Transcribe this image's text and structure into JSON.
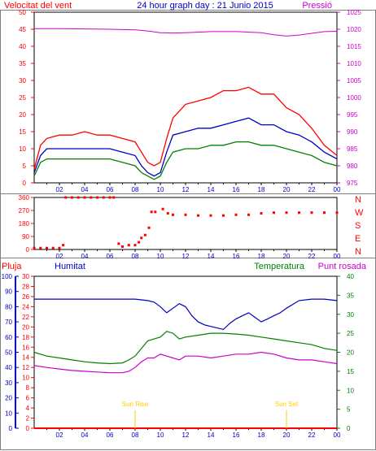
{
  "header": {
    "left_label": "Velocitat del vent",
    "title": "24 hour graph day : 21 Junio 2015",
    "right_label": "Pressió"
  },
  "colors": {
    "red": "#ff0000",
    "blue": "#0000c0",
    "green": "#008000",
    "magenta": "#cc00cc",
    "yellow": "#ffcc00",
    "border": "#808080"
  },
  "time_ticks": [
    "02",
    "04",
    "06",
    "08",
    "10",
    "12",
    "14",
    "16",
    "18",
    "20",
    "22",
    "00"
  ],
  "chart_data": [
    {
      "type": "line",
      "title": "24 hour graph day : 21 Junio 2015",
      "xlabel": "",
      "x_unit": "hour",
      "xlim": [
        0,
        24
      ],
      "ylabel_left": "Velocitat del vent",
      "ylabel_right": "Pressió",
      "ylim_left": [
        0,
        50
      ],
      "ylim_right": [
        975,
        1025
      ],
      "yticks_left": [
        0,
        5,
        10,
        15,
        20,
        25,
        30,
        35,
        40,
        45,
        50
      ],
      "yticks_right": [
        975,
        980,
        985,
        990,
        995,
        1000,
        1005,
        1010,
        1015,
        1020,
        1025
      ],
      "grid": false,
      "series": [
        {
          "name": "Pressió",
          "axis": "right",
          "color": "#cc00cc",
          "x": [
            0,
            2,
            4,
            6,
            8,
            9,
            10,
            11,
            12,
            14,
            16,
            18,
            19,
            20,
            21,
            22,
            23,
            24
          ],
          "y": [
            1020.2,
            1020.2,
            1020.1,
            1020.0,
            1019.8,
            1019.5,
            1019.0,
            1018.9,
            1019.0,
            1019.3,
            1019.3,
            1019.0,
            1018.4,
            1018.0,
            1018.3,
            1018.8,
            1019.3,
            1019.4
          ]
        },
        {
          "axis": "left",
          "color": "#ff0000",
          "x": [
            0,
            0.5,
            1,
            2,
            3,
            4,
            5,
            6,
            7,
            8,
            8.5,
            9,
            9.5,
            10,
            10.5,
            11,
            12,
            13,
            14,
            15,
            16,
            17,
            18,
            19,
            20,
            21,
            22,
            23,
            24
          ],
          "y": [
            4,
            11,
            13,
            14,
            14,
            15,
            14,
            14,
            13,
            12,
            9,
            6,
            5,
            6,
            13,
            19,
            23,
            24,
            25,
            27,
            27,
            28,
            26,
            26,
            22,
            20,
            16,
            11,
            8
          ]
        },
        {
          "axis": "left",
          "color": "#0000c0",
          "x": [
            0,
            0.5,
            1,
            2,
            3,
            4,
            5,
            6,
            7,
            8,
            8.5,
            9,
            9.5,
            10,
            10.5,
            11,
            12,
            13,
            14,
            15,
            16,
            17,
            18,
            19,
            20,
            21,
            22,
            23,
            24
          ],
          "y": [
            3,
            8,
            10,
            10,
            10,
            10,
            10,
            10,
            9,
            8,
            5,
            3,
            2,
            3,
            9,
            14,
            15,
            16,
            16,
            17,
            18,
            19,
            17,
            17,
            15,
            14,
            12,
            9,
            7
          ]
        },
        {
          "axis": "left",
          "color": "#008000",
          "x": [
            0,
            0.5,
            1,
            2,
            3,
            4,
            5,
            6,
            7,
            8,
            8.5,
            9,
            9.5,
            10,
            10.5,
            11,
            12,
            13,
            14,
            15,
            16,
            17,
            18,
            19,
            20,
            21,
            22,
            23,
            24
          ],
          "y": [
            2,
            6,
            7,
            7,
            7,
            7,
            7,
            7,
            6,
            5,
            3,
            2,
            1,
            2,
            6,
            9,
            10,
            10,
            11,
            11,
            12,
            12,
            11,
            11,
            10,
            9,
            8,
            6,
            5
          ]
        }
      ]
    },
    {
      "type": "scatter",
      "xlim": [
        0,
        24
      ],
      "ylim": [
        0,
        360
      ],
      "yticks_left": [
        0,
        90,
        180,
        270,
        360
      ],
      "yticks_right_labels": [
        "N",
        "E",
        "S",
        "W",
        "N"
      ],
      "series": [
        {
          "color": "#ff0000",
          "x": [
            0,
            0.5,
            1,
            1.5,
            2.0,
            2.3,
            2.5,
            3,
            3.5,
            4,
            4.5,
            5,
            5.5,
            6,
            6.3,
            6.7,
            7,
            7.5,
            8,
            8.3,
            8.5,
            8.8,
            9.1,
            9.3,
            9.6,
            10.2,
            10.6,
            11,
            12,
            13,
            14,
            15,
            16,
            17,
            18,
            19,
            20,
            21,
            22,
            23,
            24
          ],
          "y": [
            10,
            10,
            10,
            10,
            10,
            30,
            360,
            360,
            360,
            360,
            360,
            360,
            360,
            360,
            360,
            40,
            20,
            30,
            30,
            50,
            80,
            100,
            150,
            260,
            260,
            280,
            250,
            240,
            240,
            235,
            235,
            235,
            240,
            240,
            250,
            255,
            255,
            255,
            255,
            255,
            255
          ]
        }
      ]
    },
    {
      "type": "line",
      "xlim": [
        0,
        24
      ],
      "left_labels": [
        "Pluja",
        "Humitat"
      ],
      "right_labels": [
        "Temperatura",
        "Punt rosada"
      ],
      "axis_rain": [
        0,
        30
      ],
      "axis_humidity": [
        0,
        100
      ],
      "axis_temperature": [
        0,
        40
      ],
      "yticks_rain": [
        0,
        2,
        4,
        6,
        8,
        10,
        12,
        14,
        16,
        18,
        20,
        22,
        24,
        26,
        28,
        30
      ],
      "yticks_humidity": [
        0,
        10,
        20,
        30,
        40,
        50,
        60,
        70,
        80,
        90,
        100
      ],
      "yticks_temperature": [
        0,
        5,
        10,
        15,
        20,
        25,
        30,
        35,
        40
      ],
      "annotations": [
        {
          "text": "Sun Rise",
          "x": 8
        },
        {
          "text": "Sun Set",
          "x": 20
        }
      ],
      "series": [
        {
          "name": "Humitat",
          "axis": "humidity",
          "color": "#0000c0",
          "x": [
            0,
            2,
            4,
            6,
            8,
            9,
            9.5,
            10,
            10.5,
            11,
            11.5,
            12,
            12.5,
            13,
            13.5,
            14,
            14.5,
            15,
            15.5,
            16,
            16.5,
            17,
            17.5,
            18,
            18.5,
            19,
            19.5,
            20,
            21,
            22,
            23,
            24
          ],
          "y": [
            85,
            85,
            85,
            85,
            85,
            84,
            83,
            80,
            76,
            79,
            82,
            80,
            74,
            70,
            68,
            67,
            66,
            65,
            69,
            72,
            74,
            76,
            73,
            70,
            72,
            74,
            76,
            79,
            84,
            85,
            85,
            84
          ]
        },
        {
          "name": "Temperatura",
          "axis": "temperature",
          "color": "#008000",
          "x": [
            0,
            1,
            2,
            3,
            4,
            5,
            6,
            7,
            7.5,
            8,
            8.5,
            9,
            9.5,
            10,
            10.5,
            11,
            11.5,
            12,
            13,
            14,
            15,
            16,
            17,
            18,
            19,
            20,
            21,
            22,
            23,
            24
          ],
          "y": [
            20,
            19,
            18.5,
            18,
            17.5,
            17.2,
            17,
            17.2,
            18,
            19,
            21,
            23,
            23.5,
            24,
            25.5,
            25,
            23.5,
            24,
            24.5,
            25,
            25,
            24.8,
            24.5,
            24,
            23.5,
            23,
            22.5,
            22,
            21,
            20.5
          ]
        },
        {
          "name": "Punt rosada",
          "axis": "temperature",
          "color": "#cc00cc",
          "x": [
            0,
            1,
            2,
            3,
            4,
            5,
            6,
            7,
            7.5,
            8,
            8.5,
            9,
            9.5,
            10,
            10.5,
            11,
            11.5,
            12,
            13,
            14,
            15,
            16,
            17,
            18,
            19,
            20,
            21,
            22,
            23,
            24
          ],
          "y": [
            16.5,
            16,
            15.6,
            15.2,
            15,
            14.8,
            14.6,
            14.6,
            15,
            16,
            17.5,
            18.5,
            18.5,
            19.5,
            19,
            18.5,
            18,
            19,
            19,
            18.5,
            19,
            19.5,
            19.5,
            20,
            19.5,
            18.5,
            18,
            18,
            17.5,
            17
          ]
        },
        {
          "name": "Pluja",
          "axis": "rain",
          "color": "#ff0000",
          "x": [
            0,
            24
          ],
          "y": [
            0,
            0
          ]
        }
      ]
    }
  ]
}
